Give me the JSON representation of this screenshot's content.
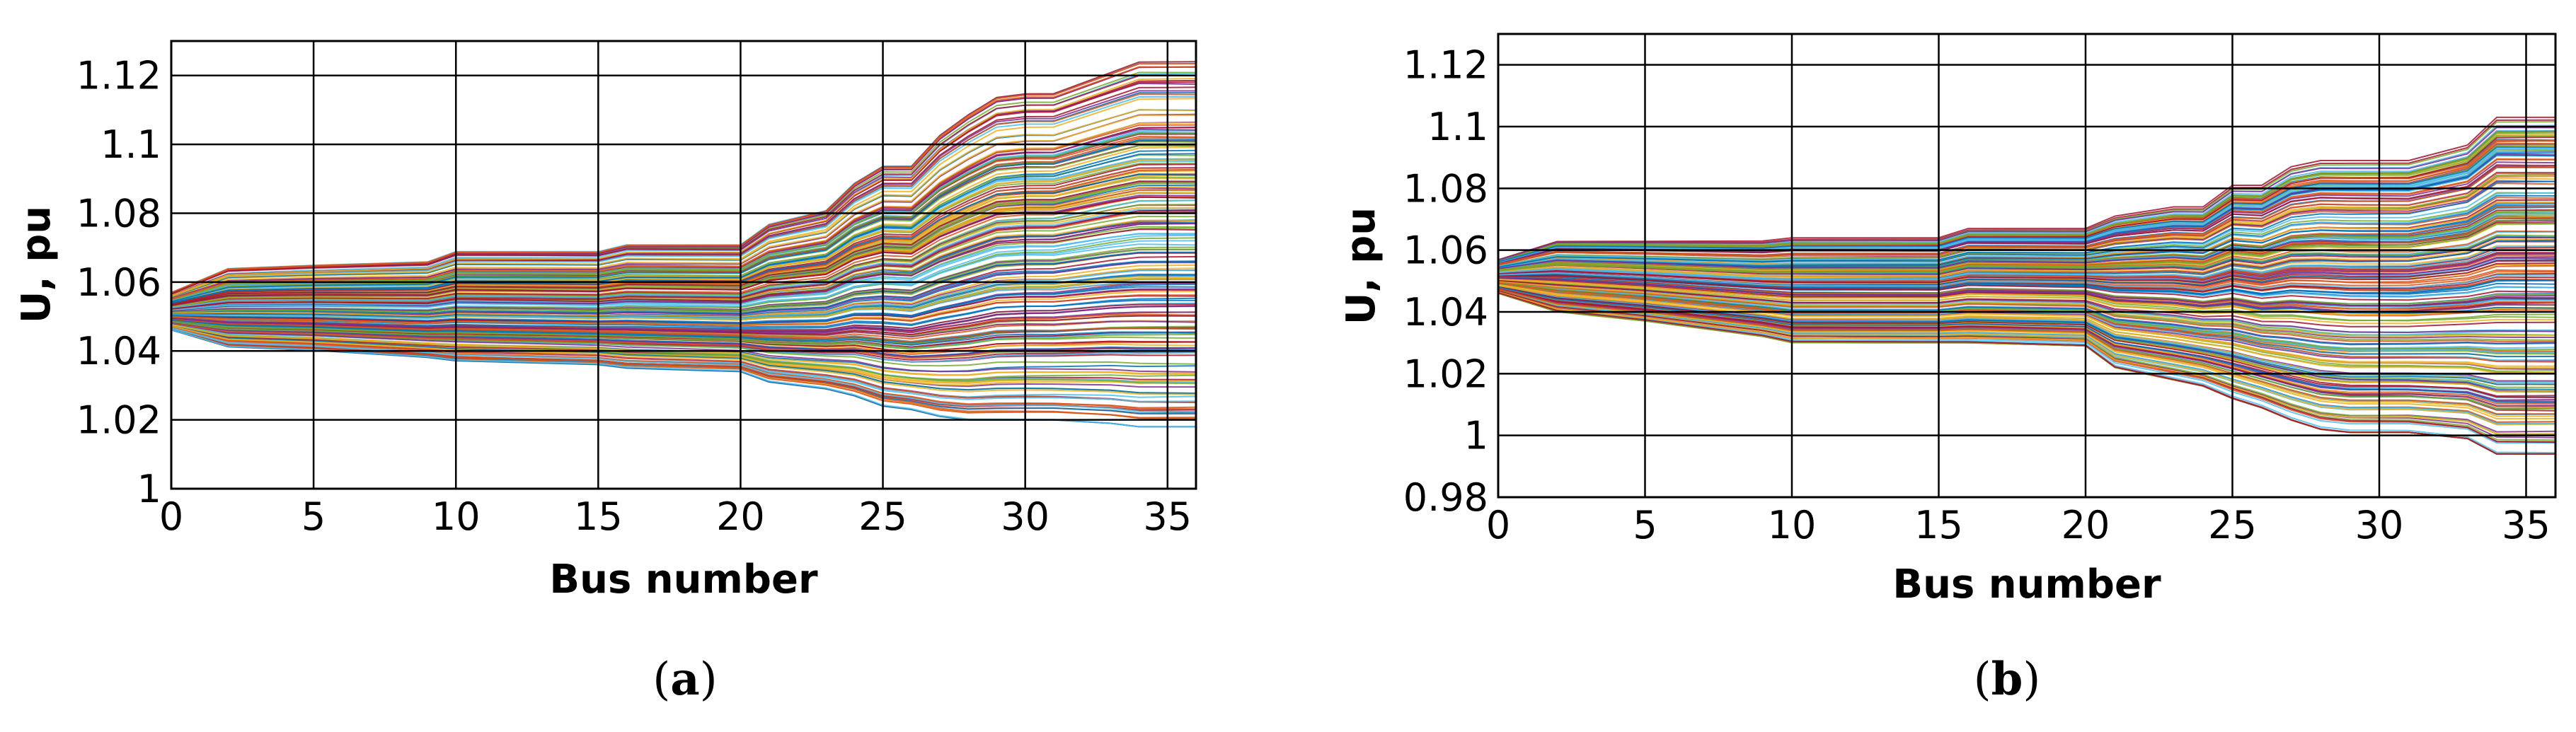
{
  "palette": [
    "#0072bd",
    "#d95319",
    "#edb120",
    "#7e2f8e",
    "#77ac30",
    "#4dbeee",
    "#a2142f"
  ],
  "chart_data": [
    {
      "type": "line",
      "panel_label": "a",
      "xlabel": "Bus number",
      "ylabel": "U, pu",
      "xlim": [
        0,
        36
      ],
      "ylim": [
        1,
        1.13
      ],
      "xticks": [
        0,
        5,
        10,
        15,
        20,
        25,
        30,
        35
      ],
      "yticks": [
        1,
        1.02,
        1.04,
        1.06,
        1.08,
        1.1,
        1.12
      ],
      "ytick_labels": [
        "1",
        "1.02",
        "1.04",
        "1.06",
        "1.08",
        "1.1",
        "1.12"
      ],
      "grid": true,
      "series_count": 1000,
      "envelope": {
        "x": [
          0,
          2,
          5,
          9,
          10,
          15,
          16,
          20,
          21,
          23,
          24,
          25,
          26,
          27,
          28,
          29,
          30,
          31,
          33,
          34,
          35,
          36
        ],
        "upper": [
          1.057,
          1.064,
          1.065,
          1.066,
          1.069,
          1.069,
          1.071,
          1.071,
          1.077,
          1.081,
          1.089,
          1.094,
          1.094,
          1.103,
          1.109,
          1.114,
          1.115,
          1.115,
          1.121,
          1.124,
          1.124,
          1.124
        ],
        "lower": [
          1.046,
          1.041,
          1.04,
          1.038,
          1.037,
          1.036,
          1.035,
          1.034,
          1.031,
          1.029,
          1.027,
          1.024,
          1.023,
          1.021,
          1.02,
          1.02,
          1.02,
          1.02,
          1.019,
          1.018,
          1.018,
          1.018
        ]
      }
    },
    {
      "type": "line",
      "panel_label": "b",
      "xlabel": "Bus number",
      "ylabel": "U, pu",
      "xlim": [
        0,
        36
      ],
      "ylim": [
        0.98,
        1.13
      ],
      "xticks": [
        0,
        5,
        10,
        15,
        20,
        25,
        30,
        35
      ],
      "yticks": [
        0.98,
        1,
        1.02,
        1.04,
        1.06,
        1.08,
        1.1,
        1.12
      ],
      "ytick_labels": [
        "0.98",
        "1",
        "1.02",
        "1.04",
        "1.06",
        "1.08",
        "1.1",
        "1.12"
      ],
      "grid": true,
      "series_count": 1000,
      "envelope": {
        "x": [
          0,
          2,
          5,
          9,
          10,
          15,
          16,
          20,
          21,
          23,
          24,
          25,
          26,
          27,
          28,
          29,
          30,
          31,
          33,
          34,
          35,
          36
        ],
        "upper": [
          1.057,
          1.063,
          1.063,
          1.063,
          1.064,
          1.064,
          1.067,
          1.067,
          1.071,
          1.074,
          1.074,
          1.081,
          1.081,
          1.087,
          1.089,
          1.089,
          1.089,
          1.089,
          1.094,
          1.103,
          1.103,
          1.103
        ],
        "lower": [
          1.046,
          1.04,
          1.037,
          1.032,
          1.03,
          1.03,
          1.03,
          1.029,
          1.022,
          1.018,
          1.016,
          1.012,
          1.009,
          1.005,
          1.002,
          1.001,
          1.001,
          1.001,
          0.999,
          0.994,
          0.994,
          0.994
        ]
      }
    }
  ]
}
